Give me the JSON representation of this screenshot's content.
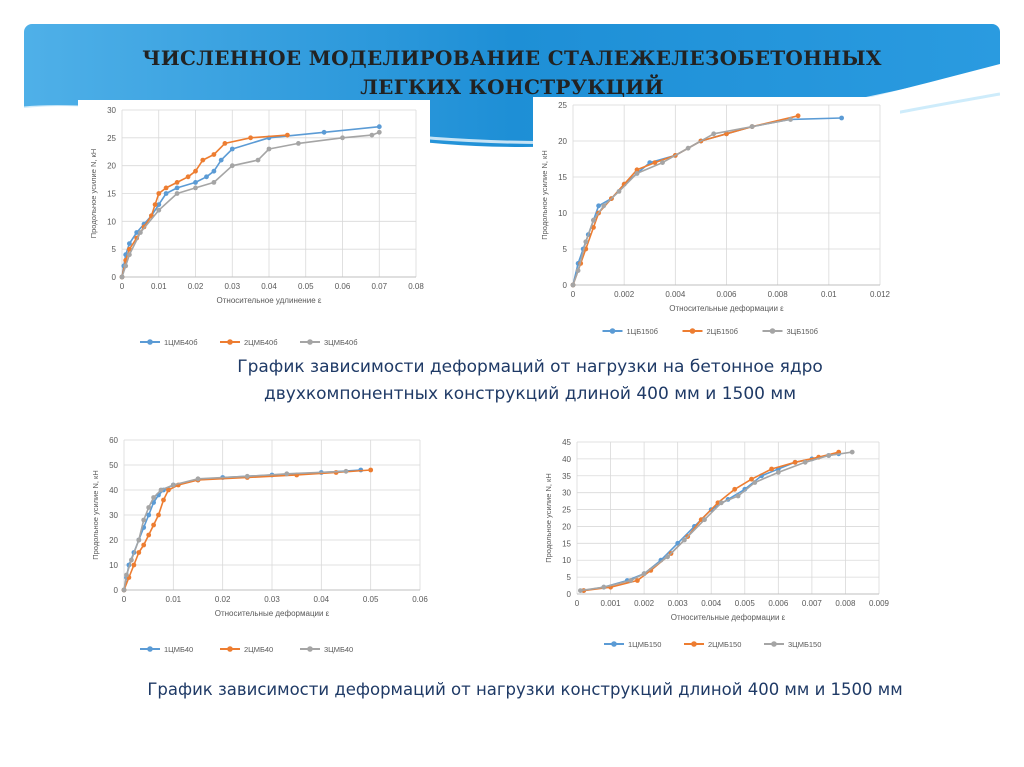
{
  "slide": {
    "title_line1": "ЧИСЛЕННОЕ МОДЕЛИРОВАНИЕ СТАЛЕЖЕЛЕЗОБЕТОННЫХ",
    "title_line2": "ЛЕГКИХ КОНСТРУКЦИЙ",
    "caption_top": "График зависимости деформаций от нагрузки на бетонное ядро двухкомпонентных конструкций длиной 400 мм и 1500 мм",
    "caption_bottom": "График зависимости деформаций от нагрузки конструкций длиной 400 мм и 1500 мм",
    "colors": {
      "header_blue": "#1e8fd6",
      "series1": "#5b9bd5",
      "series2": "#ed7d31",
      "series3": "#a5a5a5",
      "caption": "#1f3a66"
    }
  },
  "chart_data": [
    {
      "type": "line",
      "xlabel": "Относительное удлинение ε",
      "ylabel": "Продольное усилие N, кН",
      "xlim": [
        0,
        0.08
      ],
      "ylim": [
        0,
        30
      ],
      "xticks": [
        "0",
        "0.01",
        "0.02",
        "0.03",
        "0.04",
        "0.05",
        "0.06",
        "0.07",
        "0.08"
      ],
      "yticks": [
        "0",
        "5",
        "10",
        "15",
        "20",
        "25",
        "30"
      ],
      "grid": true,
      "legend_position": "bottom",
      "series": [
        {
          "name": "1ЦМБ40б",
          "points": [
            [
              0,
              0
            ],
            [
              0.0005,
              2
            ],
            [
              0.001,
              4
            ],
            [
              0.002,
              6
            ],
            [
              0.004,
              8
            ],
            [
              0.006,
              9.5
            ],
            [
              0.008,
              11
            ],
            [
              0.01,
              13
            ],
            [
              0.012,
              15
            ],
            [
              0.015,
              16
            ],
            [
              0.02,
              17
            ],
            [
              0.023,
              18
            ],
            [
              0.025,
              19
            ],
            [
              0.027,
              21
            ],
            [
              0.03,
              23
            ],
            [
              0.04,
              25
            ],
            [
              0.055,
              26
            ],
            [
              0.07,
              27
            ]
          ]
        },
        {
          "name": "2ЦМБ40б",
          "points": [
            [
              0,
              0
            ],
            [
              0.001,
              3
            ],
            [
              0.002,
              5
            ],
            [
              0.004,
              7
            ],
            [
              0.006,
              9
            ],
            [
              0.008,
              11
            ],
            [
              0.009,
              13
            ],
            [
              0.01,
              15
            ],
            [
              0.012,
              16
            ],
            [
              0.015,
              17
            ],
            [
              0.018,
              18
            ],
            [
              0.02,
              19
            ],
            [
              0.022,
              21
            ],
            [
              0.025,
              22
            ],
            [
              0.028,
              24
            ],
            [
              0.035,
              25
            ],
            [
              0.045,
              25.5
            ]
          ]
        },
        {
          "name": "3ЦМБ40б",
          "points": [
            [
              0,
              0
            ],
            [
              0.001,
              2
            ],
            [
              0.002,
              4
            ],
            [
              0.005,
              8
            ],
            [
              0.01,
              12
            ],
            [
              0.015,
              15
            ],
            [
              0.02,
              16
            ],
            [
              0.025,
              17
            ],
            [
              0.03,
              20
            ],
            [
              0.037,
              21
            ],
            [
              0.04,
              23
            ],
            [
              0.048,
              24
            ],
            [
              0.06,
              25
            ],
            [
              0.068,
              25.5
            ],
            [
              0.07,
              26
            ]
          ]
        }
      ]
    },
    {
      "type": "line",
      "xlabel": "Относительные деформации ε",
      "ylabel": "Продольное усилие N, кН",
      "xlim": [
        0,
        0.012
      ],
      "ylim": [
        0,
        25
      ],
      "xticks": [
        "0",
        "0.002",
        "0.004",
        "0.006",
        "0.008",
        "0.01",
        "0.012"
      ],
      "yticks": [
        "0",
        "5",
        "10",
        "15",
        "20",
        "25"
      ],
      "grid": true,
      "legend_position": "bottom",
      "series": [
        {
          "name": "1ЦБ150б",
          "points": [
            [
              0,
              0
            ],
            [
              0.0002,
              3
            ],
            [
              0.0004,
              5
            ],
            [
              0.0006,
              7
            ],
            [
              0.0008,
              9
            ],
            [
              0.001,
              11
            ],
            [
              0.0015,
              12
            ],
            [
              0.002,
              14
            ],
            [
              0.0025,
              15.5
            ],
            [
              0.003,
              17
            ],
            [
              0.004,
              18
            ],
            [
              0.005,
              20
            ],
            [
              0.006,
              21
            ],
            [
              0.007,
              22
            ],
            [
              0.0085,
              23
            ],
            [
              0.0105,
              23.2
            ]
          ]
        },
        {
          "name": "2ЦБ150б",
          "points": [
            [
              0,
              0
            ],
            [
              0.0003,
              3
            ],
            [
              0.0005,
              5
            ],
            [
              0.0008,
              8
            ],
            [
              0.001,
              10
            ],
            [
              0.0015,
              12
            ],
            [
              0.002,
              14
            ],
            [
              0.0025,
              16
            ],
            [
              0.0032,
              17
            ],
            [
              0.004,
              18
            ],
            [
              0.005,
              20
            ],
            [
              0.006,
              21
            ],
            [
              0.007,
              22
            ],
            [
              0.0088,
              23.5
            ]
          ]
        },
        {
          "name": "3ЦБ150б",
          "points": [
            [
              0,
              0
            ],
            [
              0.0002,
              2
            ],
            [
              0.0005,
              6
            ],
            [
              0.0008,
              9
            ],
            [
              0.0012,
              11
            ],
            [
              0.0018,
              13
            ],
            [
              0.0025,
              15.5
            ],
            [
              0.0035,
              17
            ],
            [
              0.0045,
              19
            ],
            [
              0.0055,
              21
            ],
            [
              0.007,
              22
            ],
            [
              0.0085,
              23
            ]
          ]
        }
      ]
    },
    {
      "type": "line",
      "xlabel": "Относительные деформации ε",
      "ylabel": "Продольное усилие N, кН",
      "xlim": [
        0,
        0.06
      ],
      "ylim": [
        0,
        60
      ],
      "xticks": [
        "0",
        "0.01",
        "0.02",
        "0.03",
        "0.04",
        "0.05",
        "0.06"
      ],
      "yticks": [
        "0",
        "10",
        "20",
        "30",
        "40",
        "50",
        "60"
      ],
      "grid": true,
      "legend_position": "bottom",
      "series": [
        {
          "name": "1ЦМБ40",
          "points": [
            [
              0,
              0
            ],
            [
              0.0005,
              5
            ],
            [
              0.001,
              10
            ],
            [
              0.002,
              15
            ],
            [
              0.003,
              20
            ],
            [
              0.004,
              25
            ],
            [
              0.005,
              30
            ],
            [
              0.006,
              35
            ],
            [
              0.007,
              38
            ],
            [
              0.008,
              40
            ],
            [
              0.01,
              42
            ],
            [
              0.015,
              44
            ],
            [
              0.02,
              45
            ],
            [
              0.03,
              46
            ],
            [
              0.04,
              47
            ],
            [
              0.048,
              48
            ]
          ]
        },
        {
          "name": "2ЦМБ40",
          "points": [
            [
              0,
              0
            ],
            [
              0.001,
              5
            ],
            [
              0.002,
              10
            ],
            [
              0.003,
              15
            ],
            [
              0.004,
              18
            ],
            [
              0.005,
              22
            ],
            [
              0.006,
              26
            ],
            [
              0.007,
              30
            ],
            [
              0.008,
              36
            ],
            [
              0.009,
              40
            ],
            [
              0.011,
              42
            ],
            [
              0.015,
              44
            ],
            [
              0.025,
              45
            ],
            [
              0.035,
              46
            ],
            [
              0.043,
              47
            ],
            [
              0.05,
              48
            ]
          ]
        },
        {
          "name": "3ЦМБ40",
          "points": [
            [
              0,
              0
            ],
            [
              0.0005,
              6
            ],
            [
              0.0015,
              12
            ],
            [
              0.003,
              20
            ],
            [
              0.004,
              28
            ],
            [
              0.005,
              33
            ],
            [
              0.006,
              37
            ],
            [
              0.0075,
              40
            ],
            [
              0.01,
              42
            ],
            [
              0.015,
              44.5
            ],
            [
              0.025,
              45.5
            ],
            [
              0.033,
              46.5
            ],
            [
              0.045,
              47.5
            ]
          ]
        }
      ]
    },
    {
      "type": "line",
      "xlabel": "Относительные деформации ε",
      "ylabel": "Продольное усилие N, кН",
      "xlim": [
        0,
        0.009
      ],
      "ylim": [
        0,
        45
      ],
      "xticks": [
        "0",
        "0.001",
        "0.002",
        "0.003",
        "0.004",
        "0.005",
        "0.006",
        "0.007",
        "0.008",
        "0.009"
      ],
      "yticks": [
        "0",
        "5",
        "10",
        "15",
        "20",
        "25",
        "30",
        "35",
        "40",
        "45"
      ],
      "grid": true,
      "legend_position": "bottom",
      "series": [
        {
          "name": "1ЦМБ150",
          "points": [
            [
              0.0002,
              1
            ],
            [
              0.0008,
              2
            ],
            [
              0.0015,
              4
            ],
            [
              0.002,
              6
            ],
            [
              0.0025,
              10
            ],
            [
              0.003,
              15
            ],
            [
              0.0035,
              20
            ],
            [
              0.004,
              25
            ],
            [
              0.0045,
              28
            ],
            [
              0.005,
              31
            ],
            [
              0.0055,
              35
            ],
            [
              0.006,
              37
            ],
            [
              0.0065,
              39
            ],
            [
              0.007,
              40
            ],
            [
              0.0075,
              41
            ],
            [
              0.0078,
              41.5
            ]
          ]
        },
        {
          "name": "2ЦМБ150",
          "points": [
            [
              0.0002,
              1
            ],
            [
              0.001,
              2
            ],
            [
              0.0018,
              4
            ],
            [
              0.0022,
              7
            ],
            [
              0.0028,
              12
            ],
            [
              0.0033,
              17
            ],
            [
              0.0037,
              22
            ],
            [
              0.0042,
              27
            ],
            [
              0.0047,
              31
            ],
            [
              0.0052,
              34
            ],
            [
              0.0058,
              37
            ],
            [
              0.0065,
              39
            ],
            [
              0.0072,
              40.5
            ],
            [
              0.0078,
              42
            ]
          ]
        },
        {
          "name": "3ЦМБ150",
          "points": [
            [
              0.0001,
              1
            ],
            [
              0.0008,
              2
            ],
            [
              0.0016,
              4
            ],
            [
              0.002,
              6
            ],
            [
              0.0027,
              11
            ],
            [
              0.0032,
              16
            ],
            [
              0.0038,
              22
            ],
            [
              0.0043,
              27
            ],
            [
              0.0048,
              29
            ],
            [
              0.0053,
              33
            ],
            [
              0.006,
              36
            ],
            [
              0.0068,
              39
            ],
            [
              0.0075,
              41
            ],
            [
              0.0082,
              42
            ]
          ]
        }
      ]
    }
  ]
}
